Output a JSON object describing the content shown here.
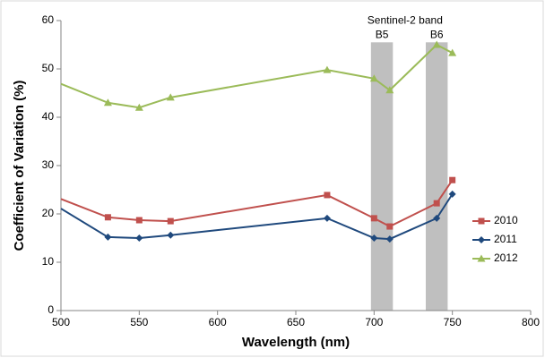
{
  "chart_data": {
    "type": "line",
    "x_label": "Wavelength (nm)",
    "y_label": "Coefficient of Variation (%)",
    "x": [
      500,
      530,
      550,
      570,
      670,
      700,
      710,
      740,
      750
    ],
    "series": [
      {
        "name": "2010",
        "color": "#c0504d",
        "marker": "square",
        "values": [
          23.1,
          19.3,
          18.7,
          18.5,
          23.9,
          19.1,
          17.4,
          22.2,
          27.0
        ]
      },
      {
        "name": "2011",
        "color": "#1f497d",
        "marker": "diamond",
        "values": [
          21.1,
          15.2,
          15.0,
          15.6,
          19.1,
          15.0,
          14.8,
          19.1,
          24.1
        ]
      },
      {
        "name": "2012",
        "color": "#9bbb59",
        "marker": "triangle",
        "values": [
          46.9,
          43.0,
          42.0,
          44.1,
          49.8,
          48.0,
          45.6,
          55.0,
          53.3
        ]
      }
    ],
    "bands": [
      {
        "label": "B5",
        "range": [
          698,
          712
        ]
      },
      {
        "label": "B6",
        "range": [
          733,
          747
        ]
      }
    ],
    "band_top": 55.5,
    "band_color": "#bfbfbf",
    "annotation": "Sentinel-2 band",
    "xlim": [
      500,
      800
    ],
    "xticks": [
      500,
      550,
      600,
      650,
      700,
      750,
      800
    ],
    "ylim": [
      0,
      60
    ],
    "yticks": [
      0,
      10,
      20,
      30,
      40,
      50,
      60
    ],
    "legend": "right"
  }
}
